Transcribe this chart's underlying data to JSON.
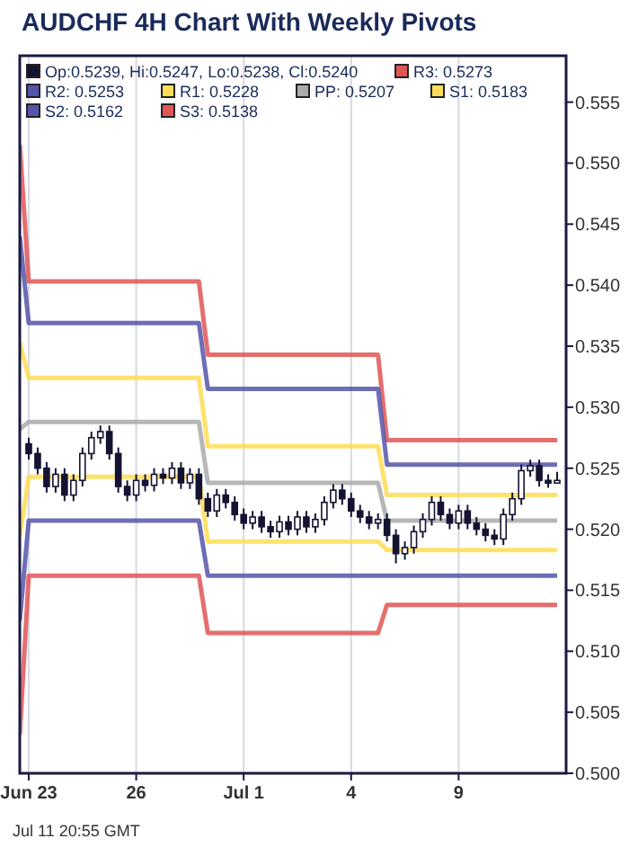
{
  "chart_data": {
    "type": "candlestick",
    "title": "AUDCHF 4H Chart With Weekly Pivots",
    "annotations": [
      "Jul 11 20:55 GMT"
    ],
    "categories": [
      null,
      "Jun 23",
      null,
      null,
      null,
      null,
      null,
      null,
      null,
      null,
      null,
      null,
      null,
      "26",
      null,
      null,
      null,
      null,
      null,
      null,
      null,
      null,
      null,
      null,
      null,
      "Jul 1",
      null,
      null,
      null,
      null,
      null,
      null,
      null,
      null,
      null,
      null,
      null,
      "4",
      null,
      null,
      null,
      null,
      null,
      null,
      null,
      null,
      null,
      null,
      null,
      "9",
      null,
      null,
      null,
      null,
      null,
      null,
      null,
      null,
      null,
      null,
      null
    ],
    "ylim": [
      0.5,
      0.5588
    ],
    "yticks": [
      {
        "value": 0.5,
        "label": "0.500"
      },
      {
        "value": 0.505,
        "label": "0.505"
      },
      {
        "value": 0.51,
        "label": "0.510"
      },
      {
        "value": 0.515,
        "label": "0.515"
      },
      {
        "value": 0.52,
        "label": "0.520"
      },
      {
        "value": 0.525,
        "label": "0.525"
      },
      {
        "value": 0.53,
        "label": "0.530"
      },
      {
        "value": 0.535,
        "label": "0.535"
      },
      {
        "value": 0.54,
        "label": "0.540"
      },
      {
        "value": 0.545,
        "label": "0.545"
      },
      {
        "value": 0.55,
        "label": "0.550"
      },
      {
        "value": 0.555,
        "label": "0.555"
      }
    ],
    "grid": "x",
    "legend": "top left",
    "series": [
      {
        "name": "Op:0.5239, Hi:0.5247, Lo:0.5238, Cl:0.5240",
        "color": "#141432",
        "ohlc": [
          null,
          [
            0.527,
            0.5275,
            0.5257,
            0.5262
          ],
          [
            0.5262,
            0.5267,
            0.5245,
            0.525
          ],
          [
            0.525,
            0.5255,
            0.523,
            0.5235
          ],
          [
            0.5235,
            0.525,
            0.523,
            0.5245
          ],
          [
            0.5245,
            0.525,
            0.5223,
            0.5228
          ],
          [
            0.5228,
            0.5245,
            0.5223,
            0.524
          ],
          [
            0.524,
            0.5267,
            0.5235,
            0.5262
          ],
          [
            0.5262,
            0.528,
            0.5257,
            0.5275
          ],
          [
            0.5275,
            0.5285,
            0.527,
            0.528
          ],
          [
            0.528,
            0.5285,
            0.5257,
            0.5262
          ],
          [
            0.5262,
            0.5267,
            0.523,
            0.5235
          ],
          [
            0.5235,
            0.524,
            0.5223,
            0.5228
          ],
          [
            0.5228,
            0.5245,
            0.5223,
            0.524
          ],
          [
            0.524,
            0.5245,
            0.5231,
            0.5236
          ],
          [
            0.5236,
            0.525,
            0.5231,
            0.5245
          ],
          [
            0.5245,
            0.525,
            0.5237,
            0.5242
          ],
          [
            0.5242,
            0.5255,
            0.5237,
            0.525
          ],
          [
            0.525,
            0.5255,
            0.5233,
            0.5238
          ],
          [
            0.5238,
            0.525,
            0.5233,
            0.5245
          ],
          [
            0.5245,
            0.525,
            0.522,
            0.5225
          ],
          [
            0.5225,
            0.523,
            0.521,
            0.5215
          ],
          [
            0.5215,
            0.5233,
            0.521,
            0.5228
          ],
          [
            0.5228,
            0.5233,
            0.5217,
            0.5222
          ],
          [
            0.5222,
            0.5227,
            0.5207,
            0.5212
          ],
          [
            0.5212,
            0.5217,
            0.52,
            0.5205
          ],
          [
            0.5205,
            0.5215,
            0.52,
            0.521
          ],
          [
            0.521,
            0.5215,
            0.5197,
            0.5202
          ],
          [
            0.5202,
            0.5207,
            0.5193,
            0.5198
          ],
          [
            0.5198,
            0.5211,
            0.5193,
            0.5206
          ],
          [
            0.5206,
            0.5211,
            0.5195,
            0.52
          ],
          [
            0.52,
            0.5215,
            0.5195,
            0.521
          ],
          [
            0.521,
            0.5215,
            0.5197,
            0.5202
          ],
          [
            0.5202,
            0.5213,
            0.5197,
            0.5208
          ],
          [
            0.5208,
            0.5227,
            0.5203,
            0.5222
          ],
          [
            0.5222,
            0.5237,
            0.5217,
            0.5232
          ],
          [
            0.5232,
            0.5237,
            0.522,
            0.5225
          ],
          [
            0.5225,
            0.523,
            0.521,
            0.5215
          ],
          [
            0.5215,
            0.522,
            0.5205,
            0.521
          ],
          [
            0.521,
            0.5215,
            0.52,
            0.5205
          ],
          [
            0.5205,
            0.5213,
            0.52,
            0.5208
          ],
          [
            0.5208,
            0.5213,
            0.519,
            0.5195
          ],
          [
            0.5195,
            0.52,
            0.5172,
            0.518
          ],
          [
            0.518,
            0.519,
            0.5175,
            0.5185
          ],
          [
            0.5185,
            0.5203,
            0.518,
            0.5198
          ],
          [
            0.5198,
            0.5213,
            0.5193,
            0.5208
          ],
          [
            0.5208,
            0.5227,
            0.5203,
            0.5222
          ],
          [
            0.5222,
            0.5227,
            0.5207,
            0.5212
          ],
          [
            0.5212,
            0.5217,
            0.52,
            0.5205
          ],
          [
            0.5205,
            0.522,
            0.52,
            0.5215
          ],
          [
            0.5215,
            0.522,
            0.52,
            0.5205
          ],
          [
            0.5205,
            0.521,
            0.5195,
            0.52
          ],
          [
            0.52,
            0.5205,
            0.519,
            0.5195
          ],
          [
            0.5195,
            0.52,
            0.5187,
            0.5192
          ],
          [
            0.5192,
            0.5217,
            0.5187,
            0.5212
          ],
          [
            0.5212,
            0.523,
            0.5207,
            0.5225
          ],
          [
            0.5225,
            0.5253,
            0.522,
            0.5248
          ],
          [
            0.5248,
            0.5257,
            0.5243,
            0.5252
          ],
          [
            0.5252,
            0.5257,
            0.5235,
            0.524
          ],
          [
            0.524,
            0.5245,
            0.5234,
            0.5239
          ],
          [
            0.5239,
            0.5247,
            0.5238,
            0.524
          ]
        ]
      },
      {
        "type": "line",
        "name": "R3: 0.5273",
        "color": "#e05555",
        "values": [
          0.5515,
          0.5403,
          0.5403,
          0.5403,
          0.5403,
          0.5403,
          0.5403,
          0.5403,
          0.5403,
          0.5403,
          0.5403,
          0.5403,
          0.5403,
          0.5403,
          0.5403,
          0.5403,
          0.5403,
          0.5403,
          0.5403,
          0.5403,
          0.5403,
          0.5343,
          0.5343,
          0.5343,
          0.5343,
          0.5343,
          0.5343,
          0.5343,
          0.5343,
          0.5343,
          0.5343,
          0.5343,
          0.5343,
          0.5343,
          0.5343,
          0.5343,
          0.5343,
          0.5343,
          0.5343,
          0.5343,
          0.5343,
          0.5273,
          0.5273,
          0.5273,
          0.5273,
          0.5273,
          0.5273,
          0.5273,
          0.5273,
          0.5273,
          0.5273,
          0.5273,
          0.5273,
          0.5273,
          0.5273,
          0.5273,
          0.5273,
          0.5273,
          0.5273,
          0.5273,
          0.5273
        ]
      },
      {
        "type": "line",
        "name": "R2: 0.5253",
        "color": "#5555aa",
        "values": [
          0.544,
          0.5369,
          0.5369,
          0.5369,
          0.5369,
          0.5369,
          0.5369,
          0.5369,
          0.5369,
          0.5369,
          0.5369,
          0.5369,
          0.5369,
          0.5369,
          0.5369,
          0.5369,
          0.5369,
          0.5369,
          0.5369,
          0.5369,
          0.5369,
          0.5315,
          0.5315,
          0.5315,
          0.5315,
          0.5315,
          0.5315,
          0.5315,
          0.5315,
          0.5315,
          0.5315,
          0.5315,
          0.5315,
          0.5315,
          0.5315,
          0.5315,
          0.5315,
          0.5315,
          0.5315,
          0.5315,
          0.5315,
          0.5253,
          0.5253,
          0.5253,
          0.5253,
          0.5253,
          0.5253,
          0.5253,
          0.5253,
          0.5253,
          0.5253,
          0.5253,
          0.5253,
          0.5253,
          0.5253,
          0.5253,
          0.5253,
          0.5253,
          0.5253,
          0.5253,
          0.5253
        ]
      },
      {
        "type": "line",
        "name": "R1: 0.5228",
        "color": "#ffdd55",
        "values": [
          0.5353,
          0.5324,
          0.5324,
          0.5324,
          0.5324,
          0.5324,
          0.5324,
          0.5324,
          0.5324,
          0.5324,
          0.5324,
          0.5324,
          0.5324,
          0.5324,
          0.5324,
          0.5324,
          0.5324,
          0.5324,
          0.5324,
          0.5324,
          0.5324,
          0.5268,
          0.5268,
          0.5268,
          0.5268,
          0.5268,
          0.5268,
          0.5268,
          0.5268,
          0.5268,
          0.5268,
          0.5268,
          0.5268,
          0.5268,
          0.5268,
          0.5268,
          0.5268,
          0.5268,
          0.5268,
          0.5268,
          0.5268,
          0.5228,
          0.5228,
          0.5228,
          0.5228,
          0.5228,
          0.5228,
          0.5228,
          0.5228,
          0.5228,
          0.5228,
          0.5228,
          0.5228,
          0.5228,
          0.5228,
          0.5228,
          0.5228,
          0.5228,
          0.5228,
          0.5228,
          0.5228
        ]
      },
      {
        "type": "line",
        "name": "PP: 0.5207",
        "color": "#aaaaaa",
        "values": [
          0.5282,
          0.5288,
          0.5288,
          0.5288,
          0.5288,
          0.5288,
          0.5288,
          0.5288,
          0.5288,
          0.5288,
          0.5288,
          0.5288,
          0.5288,
          0.5288,
          0.5288,
          0.5288,
          0.5288,
          0.5288,
          0.5288,
          0.5288,
          0.5288,
          0.5238,
          0.5238,
          0.5238,
          0.5238,
          0.5238,
          0.5238,
          0.5238,
          0.5238,
          0.5238,
          0.5238,
          0.5238,
          0.5238,
          0.5238,
          0.5238,
          0.5238,
          0.5238,
          0.5238,
          0.5238,
          0.5238,
          0.5238,
          0.5207,
          0.5207,
          0.5207,
          0.5207,
          0.5207,
          0.5207,
          0.5207,
          0.5207,
          0.5207,
          0.5207,
          0.5207,
          0.5207,
          0.5207,
          0.5207,
          0.5207,
          0.5207,
          0.5207,
          0.5207,
          0.5207,
          0.5207
        ]
      },
      {
        "type": "line",
        "name": "S1: 0.5183",
        "color": "#ffdd55",
        "values": [
          0.5194,
          0.5243,
          0.5243,
          0.5243,
          0.5243,
          0.5243,
          0.5243,
          0.5243,
          0.5243,
          0.5243,
          0.5243,
          0.5243,
          0.5243,
          0.5243,
          0.5243,
          0.5243,
          0.5243,
          0.5243,
          0.5243,
          0.5243,
          0.5243,
          0.519,
          0.519,
          0.519,
          0.519,
          0.519,
          0.519,
          0.519,
          0.519,
          0.519,
          0.519,
          0.519,
          0.519,
          0.519,
          0.519,
          0.519,
          0.519,
          0.519,
          0.519,
          0.519,
          0.519,
          0.5183,
          0.5183,
          0.5183,
          0.5183,
          0.5183,
          0.5183,
          0.5183,
          0.5183,
          0.5183,
          0.5183,
          0.5183,
          0.5183,
          0.5183,
          0.5183,
          0.5183,
          0.5183,
          0.5183,
          0.5183,
          0.5183,
          0.5183
        ]
      },
      {
        "type": "line",
        "name": "S2: 0.5162",
        "color": "#5555aa",
        "values": [
          0.5125,
          0.5207,
          0.5207,
          0.5207,
          0.5207,
          0.5207,
          0.5207,
          0.5207,
          0.5207,
          0.5207,
          0.5207,
          0.5207,
          0.5207,
          0.5207,
          0.5207,
          0.5207,
          0.5207,
          0.5207,
          0.5207,
          0.5207,
          0.5207,
          0.5162,
          0.5162,
          0.5162,
          0.5162,
          0.5162,
          0.5162,
          0.5162,
          0.5162,
          0.5162,
          0.5162,
          0.5162,
          0.5162,
          0.5162,
          0.5162,
          0.5162,
          0.5162,
          0.5162,
          0.5162,
          0.5162,
          0.5162,
          0.5162,
          0.5162,
          0.5162,
          0.5162,
          0.5162,
          0.5162,
          0.5162,
          0.5162,
          0.5162,
          0.5162,
          0.5162,
          0.5162,
          0.5162,
          0.5162,
          0.5162,
          0.5162,
          0.5162,
          0.5162,
          0.5162,
          0.5162
        ]
      },
      {
        "type": "line",
        "name": "S3: 0.5138",
        "color": "#e05555",
        "values": [
          0.5032,
          0.5162,
          0.5162,
          0.5162,
          0.5162,
          0.5162,
          0.5162,
          0.5162,
          0.5162,
          0.5162,
          0.5162,
          0.5162,
          0.5162,
          0.5162,
          0.5162,
          0.5162,
          0.5162,
          0.5162,
          0.5162,
          0.5162,
          0.5162,
          0.5115,
          0.5115,
          0.5115,
          0.5115,
          0.5115,
          0.5115,
          0.5115,
          0.5115,
          0.5115,
          0.5115,
          0.5115,
          0.5115,
          0.5115,
          0.5115,
          0.5115,
          0.5115,
          0.5115,
          0.5115,
          0.5115,
          0.5115,
          0.5138,
          0.5138,
          0.5138,
          0.5138,
          0.5138,
          0.5138,
          0.5138,
          0.5138,
          0.5138,
          0.5138,
          0.5138,
          0.5138,
          0.5138,
          0.5138,
          0.5138,
          0.5138,
          0.5138,
          0.5138,
          0.5138,
          0.5138
        ]
      }
    ]
  }
}
